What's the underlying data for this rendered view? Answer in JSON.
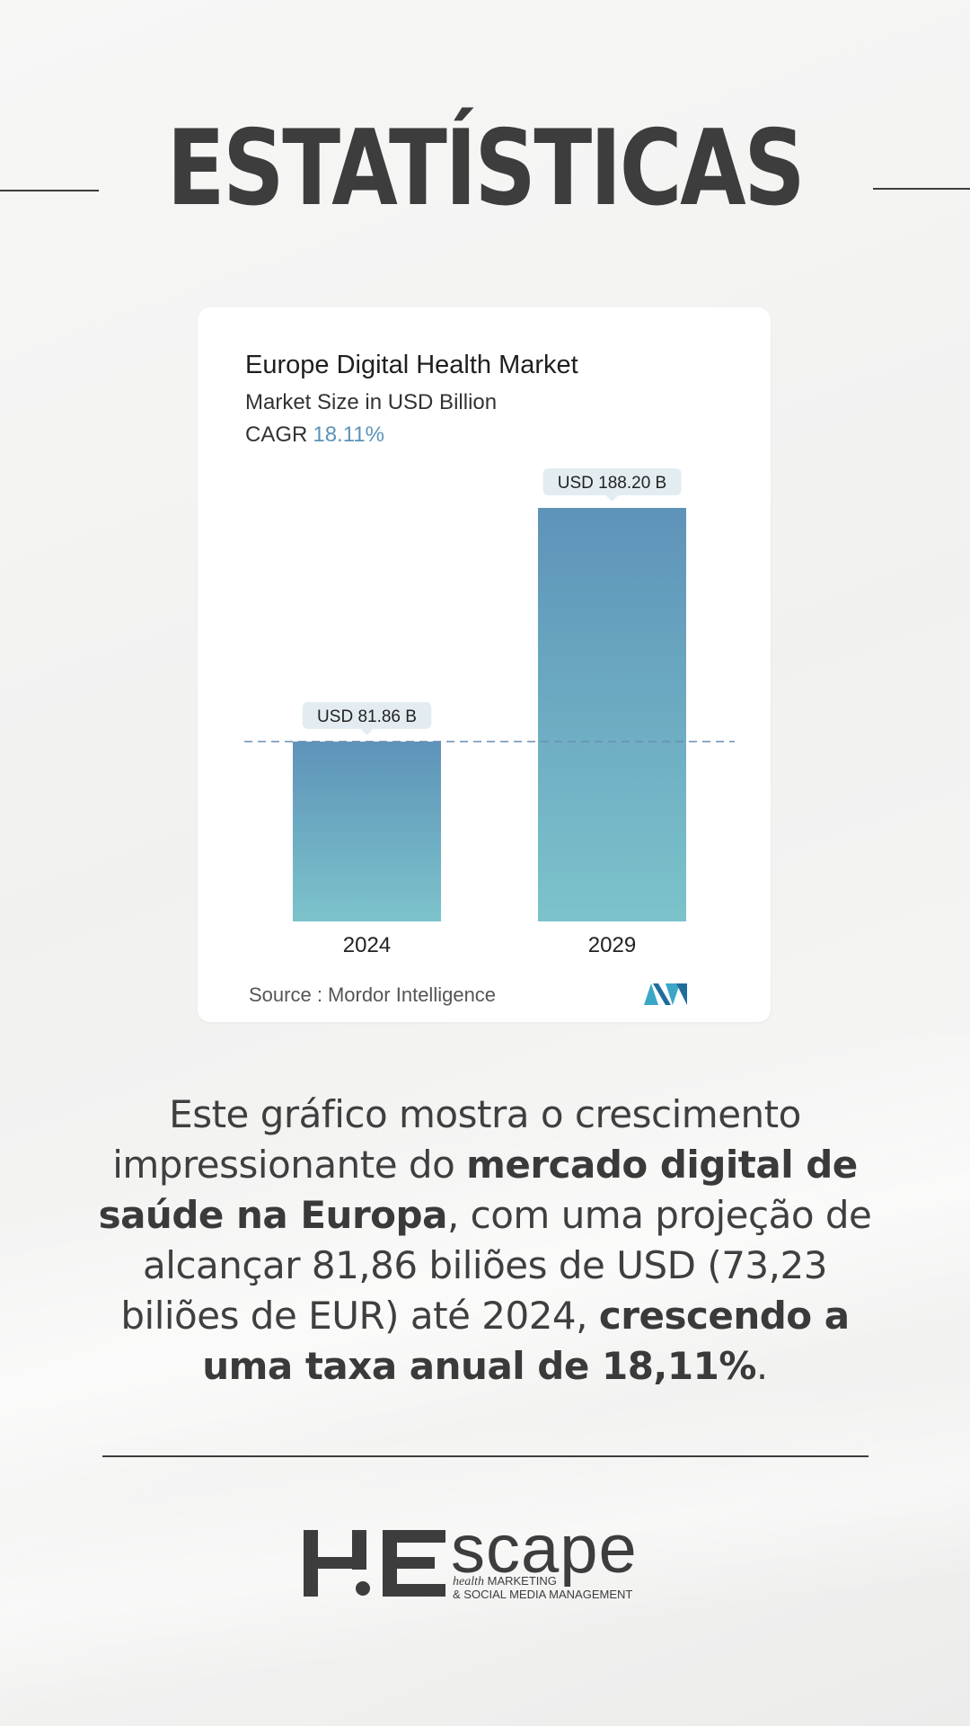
{
  "page": {
    "title": "ESTATÍSTICAS"
  },
  "chart_data": {
    "type": "bar",
    "title": "Europe Digital Health Market",
    "subtitle": "Market Size in USD Billion",
    "cagr_label": "CAGR",
    "cagr_value": "18.11%",
    "categories": [
      "2024",
      "2029"
    ],
    "values": [
      81.86,
      188.2
    ],
    "value_labels": [
      "USD 81.86 B",
      "USD 188.20 B"
    ],
    "reference_line": 81.86,
    "ylim": [
      0,
      188.2
    ],
    "grid": false,
    "source_label": "Source :",
    "source_name": "Mordor Intelligence",
    "colors": {
      "bar_top": "#5e93b9",
      "bar_bottom": "#7cc3cb",
      "label_bg": "#e3edf1",
      "reference_line": "#6a8fb3",
      "cagr_value": "#5b93b8"
    }
  },
  "description": {
    "line1": "Este gráfico mostra o crescimento",
    "line2_normal": "impressionante do ",
    "line2_bold": "mercado digital de",
    "line3_bold": "saúde na Europa",
    "line3_normal": ", com uma projeção de",
    "line4": "alcançar 81,86 biliões de USD (73,23",
    "line5_normal": "biliões de EUR) até 2024, ",
    "line5_bold": "crescendo a",
    "line6_bold": "uma taxa anual de 18,11%",
    "line6_normal": "."
  },
  "logo": {
    "mark_text": "H:E",
    "word": "scape",
    "tag_italic": "health",
    "tag_line1": " MARKETING",
    "tag_line2": "& SOCIAL MEDIA MANAGEMENT"
  }
}
